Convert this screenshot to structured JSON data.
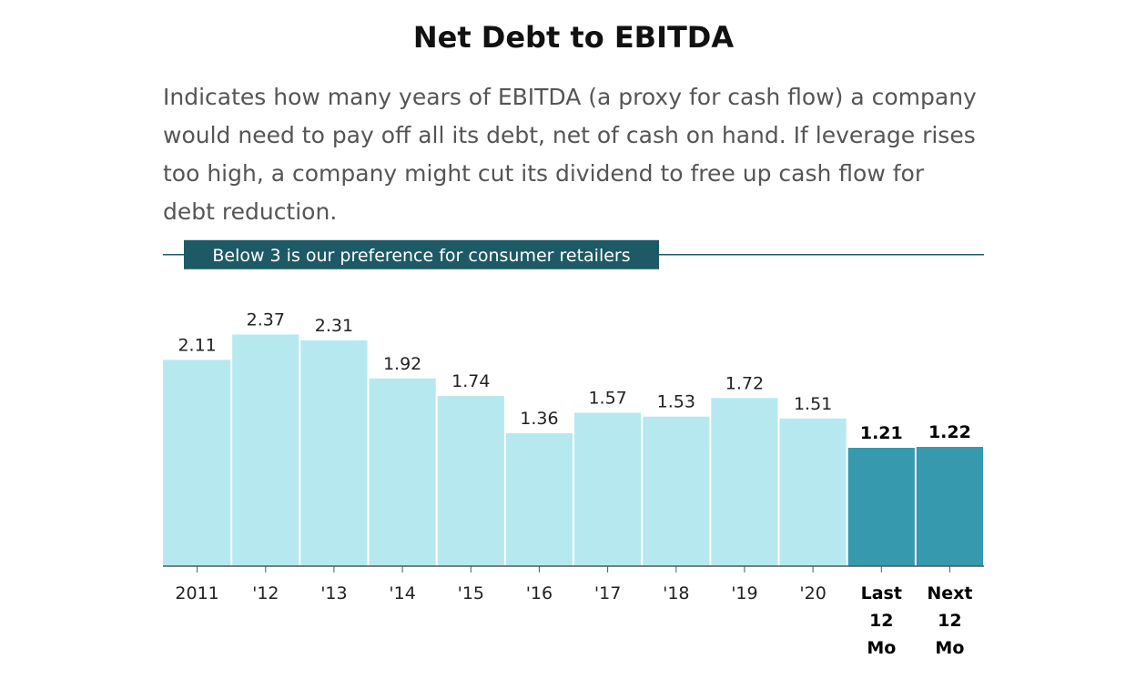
{
  "colors": {
    "bar": "#b6e9ef",
    "bar_highlight": "#3699ae",
    "threshold": "#1d5a66",
    "axis": "#555555"
  },
  "chart_data": {
    "type": "bar",
    "title": "Net Debt to EBITDA",
    "subtitle": "Indicates how many years of EBITDA (a proxy for cash flow) a company would need to pay off all its debt, net of cash on hand. If leverage rises too high, a company might cut its dividend to free up cash flow for debt reduction.",
    "categories": [
      "2011",
      "'12",
      "'13",
      "'14",
      "'15",
      "'16",
      "'17",
      "'18",
      "'19",
      "'20",
      "Last 12 Mo",
      "Next 12 Mo"
    ],
    "values": [
      2.11,
      2.37,
      2.31,
      1.92,
      1.74,
      1.36,
      1.57,
      1.53,
      1.72,
      1.51,
      1.21,
      1.22
    ],
    "value_labels": [
      "2.11",
      "2.37",
      "2.31",
      "1.92",
      "1.74",
      "1.36",
      "1.57",
      "1.53",
      "1.72",
      "1.51",
      "1.21",
      "1.22"
    ],
    "highlighted": [
      false,
      false,
      false,
      false,
      false,
      false,
      false,
      false,
      false,
      false,
      true,
      true
    ],
    "xlabel": "",
    "ylabel": "",
    "ylim": [
      0,
      3
    ],
    "grid": false,
    "threshold": {
      "value": 3,
      "label": "Below 3 is our preference for consumer retailers"
    }
  }
}
